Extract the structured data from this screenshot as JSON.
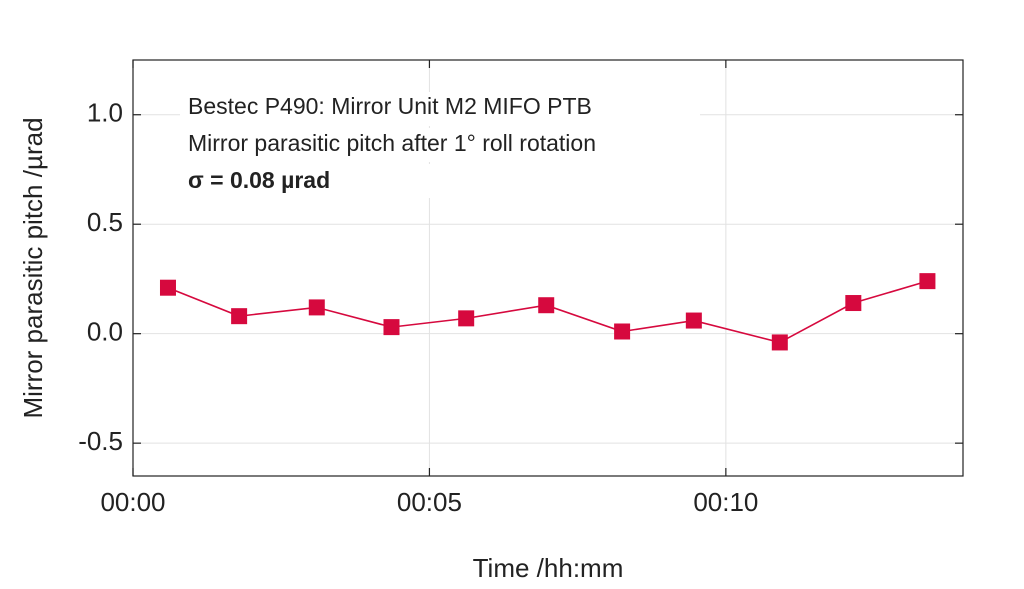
{
  "chart_data": {
    "type": "line",
    "x_label": "Time /hh:mm",
    "y_label": "Mirror parasitic pitch /µrad",
    "annotations": [
      "Bestec P490: Mirror Unit M2 MIFO PTB",
      "Mirror parasitic pitch after 1° roll rotation",
      "σ = 0.08 µrad"
    ],
    "x": [
      0.59,
      1.79,
      3.1,
      4.36,
      5.62,
      6.97,
      8.25,
      9.46,
      10.91,
      12.15,
      13.4
    ],
    "series": [
      {
        "color": "#d6093e",
        "values": [
          0.21,
          0.08,
          0.12,
          0.03,
          0.07,
          0.13,
          0.01,
          0.06,
          -0.04,
          0.14,
          0.24
        ]
      }
    ],
    "xlim": [
      0,
      14
    ],
    "xticks": [
      {
        "value": 0,
        "label": "00:00"
      },
      {
        "value": 5,
        "label": "00:05"
      },
      {
        "value": 10,
        "label": "00:10"
      }
    ],
    "ylim": [
      -0.65,
      1.25
    ],
    "yticks": [
      {
        "value": -0.5,
        "label": "-0.5"
      },
      {
        "value": 0,
        "label": "0.0"
      },
      {
        "value": 0.5,
        "label": "0.5"
      },
      {
        "value": 1,
        "label": "1.0"
      }
    ],
    "grid": true
  }
}
